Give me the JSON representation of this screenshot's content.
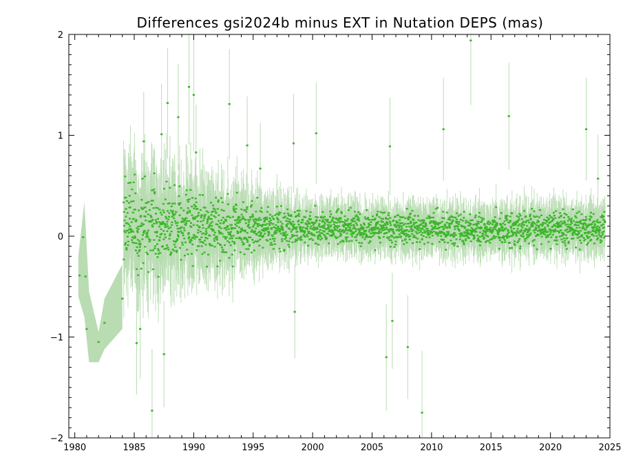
{
  "chart_data": {
    "type": "scatter",
    "title": "Differences gsi2024b minus EXT in Nutation DEPS (mas)",
    "xlabel": "",
    "ylabel": "",
    "xlim": [
      1979.5,
      2025
    ],
    "ylim": [
      -2,
      2
    ],
    "x_ticks": [
      1980,
      1985,
      1990,
      1995,
      2000,
      2005,
      2010,
      2015,
      2020,
      2025
    ],
    "y_ticks": [
      -2,
      -1,
      0,
      1,
      2
    ],
    "x_tick_labels": [
      "1980",
      "1985",
      "1990",
      "1995",
      "2000",
      "2005",
      "2010",
      "2015",
      "2020",
      "2025"
    ],
    "y_tick_labels": [
      "−2",
      "−1",
      "0",
      "1",
      "2"
    ],
    "grid": false,
    "series_color": "#3cb52a",
    "error_band_color": "#b9dcb2",
    "early_band": {
      "x": [
        1980.3,
        1980.8,
        1981.2,
        1982.0,
        1982.5,
        1984.0
      ],
      "lower": [
        -0.6,
        -0.8,
        -1.25,
        -1.25,
        -1.12,
        -0.92
      ],
      "upper": [
        -0.2,
        0.34,
        -0.55,
        -0.95,
        -0.62,
        -0.28
      ]
    },
    "early_points": [
      {
        "x": 1980.4,
        "y": -0.39
      },
      {
        "x": 1980.7,
        "y": -0.01
      },
      {
        "x": 1980.9,
        "y": -0.4
      },
      {
        "x": 1981.0,
        "y": -0.92
      },
      {
        "x": 1982.0,
        "y": -1.05
      },
      {
        "x": 1982.5,
        "y": -0.86
      },
      {
        "x": 1984.0,
        "y": -0.62
      }
    ],
    "dense_period": [
      1984.1,
      2024.6
    ],
    "outliers": [
      {
        "x": 1984.3,
        "y": 0.27
      },
      {
        "x": 1985.2,
        "y": -1.06
      },
      {
        "x": 1985.5,
        "y": -0.92
      },
      {
        "x": 1985.8,
        "y": 0.94
      },
      {
        "x": 1986.5,
        "y": -1.73
      },
      {
        "x": 1987.3,
        "y": 1.01
      },
      {
        "x": 1987.5,
        "y": -1.17
      },
      {
        "x": 1987.8,
        "y": 1.32
      },
      {
        "x": 1988.7,
        "y": 1.18
      },
      {
        "x": 1989.6,
        "y": 1.48
      },
      {
        "x": 1990.0,
        "y": 1.4
      },
      {
        "x": 1990.2,
        "y": 0.83
      },
      {
        "x": 1993.0,
        "y": 1.31
      },
      {
        "x": 1994.5,
        "y": 0.9
      },
      {
        "x": 1995.6,
        "y": 0.67
      },
      {
        "x": 1998.4,
        "y": 0.92
      },
      {
        "x": 1998.5,
        "y": -0.75
      },
      {
        "x": 2000.3,
        "y": 1.02
      },
      {
        "x": 2006.2,
        "y": -1.2
      },
      {
        "x": 2006.5,
        "y": 0.89
      },
      {
        "x": 2006.7,
        "y": -0.84
      },
      {
        "x": 2008.0,
        "y": -1.1
      },
      {
        "x": 2009.2,
        "y": -1.75
      },
      {
        "x": 2011.0,
        "y": 1.06
      },
      {
        "x": 2013.3,
        "y": 1.94
      },
      {
        "x": 2016.5,
        "y": 1.19
      },
      {
        "x": 2023.0,
        "y": 1.06
      },
      {
        "x": 2024.0,
        "y": 0.57
      }
    ]
  }
}
